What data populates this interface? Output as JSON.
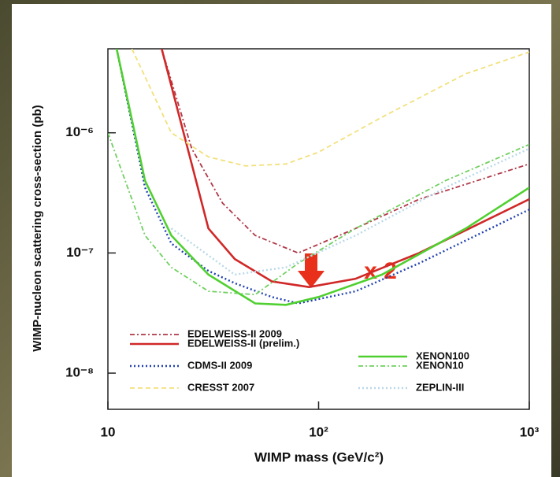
{
  "chart_data": {
    "type": "line",
    "x_label": "WIMP mass (GeV/c²)",
    "y_label": "WIMP-nucleon scattering cross-section (pb)",
    "annotation": "x 2",
    "log_x": true,
    "log_y": true,
    "xlim": [
      10,
      1000
    ],
    "xticks": [
      10,
      {
        "value": 100,
        "label": "10²"
      },
      {
        "value": 1000,
        "label": "10³"
      }
    ],
    "ylim": [
      5e-09,
      5e-06
    ],
    "yticks": [
      {
        "value": 1e-08,
        "label": "10⁻⁸"
      },
      {
        "value": 1e-07,
        "label": "10⁻⁷"
      },
      {
        "value": 1e-06,
        "label": "10⁻⁶"
      }
    ],
    "series": [
      {
        "name": "EDELWEISS-II 2009",
        "color": "#b03848",
        "style": "dashdot",
        "x": [
          18,
          25,
          35,
          50,
          80,
          150,
          300,
          1000
        ],
        "values": [
          5e-06,
          7.4e-07,
          2.6e-07,
          1.4e-07,
          1e-07,
          1.6e-07,
          2.8e-07,
          5.5e-07
        ]
      },
      {
        "name": "EDELWEISS-II (prelim.)",
        "color": "#d02828",
        "style": "solid",
        "x": [
          18,
          25,
          30,
          40,
          60,
          90,
          150,
          300,
          1000
        ],
        "values": [
          5e-06,
          5.5e-07,
          1.6e-07,
          8.9e-08,
          5.8e-08,
          5.2e-08,
          6.1e-08,
          1e-07,
          2.8e-07
        ]
      },
      {
        "name": "CDMS-II 2009",
        "color": "#2040b0",
        "style": "dotted",
        "x": [
          11,
          15,
          20,
          30,
          40,
          60,
          80,
          150,
          300,
          1000
        ],
        "values": [
          5e-06,
          3.5e-07,
          1.2e-07,
          7.1e-08,
          5.6e-08,
          4.3e-08,
          3.8e-08,
          4.8e-08,
          8.2e-08,
          2.3e-07
        ]
      },
      {
        "name": "CRESST 2007",
        "color": "#f2e07a",
        "style": "dashed",
        "x": [
          13,
          20,
          30,
          45,
          70,
          100,
          200,
          500,
          1000
        ],
        "values": [
          5e-06,
          1e-06,
          6.3e-07,
          5.3e-07,
          5.5e-07,
          6.9e-07,
          1.35e-06,
          3.1e-06,
          4.7e-06
        ]
      },
      {
        "name": "XENON100",
        "color": "#50d030",
        "style": "solid",
        "x": [
          11,
          15,
          20,
          30,
          50,
          70,
          100,
          200,
          500,
          1000
        ],
        "values": [
          5e-06,
          4e-07,
          1.4e-07,
          6.6e-08,
          3.8e-08,
          3.7e-08,
          4.3e-08,
          6.6e-08,
          1.6e-07,
          3.5e-07
        ]
      },
      {
        "name": "XENON10",
        "color": "#70d060",
        "style": "dashdot",
        "x": [
          10,
          15,
          20,
          30,
          50,
          80,
          150,
          400,
          1000
        ],
        "values": [
          1e-06,
          1.4e-07,
          7.6e-08,
          4.8e-08,
          4.5e-08,
          8.2e-08,
          1.6e-07,
          4e-07,
          8e-07
        ]
      },
      {
        "name": "ZEPLIN-III",
        "color": "#b8d8e8",
        "style": "dotted",
        "x": [
          20,
          40,
          70,
          150,
          400,
          1000
        ],
        "values": [
          1.6e-07,
          6.6e-08,
          7.6e-08,
          1.4e-07,
          3.5e-07,
          7.4e-07
        ]
      }
    ]
  }
}
